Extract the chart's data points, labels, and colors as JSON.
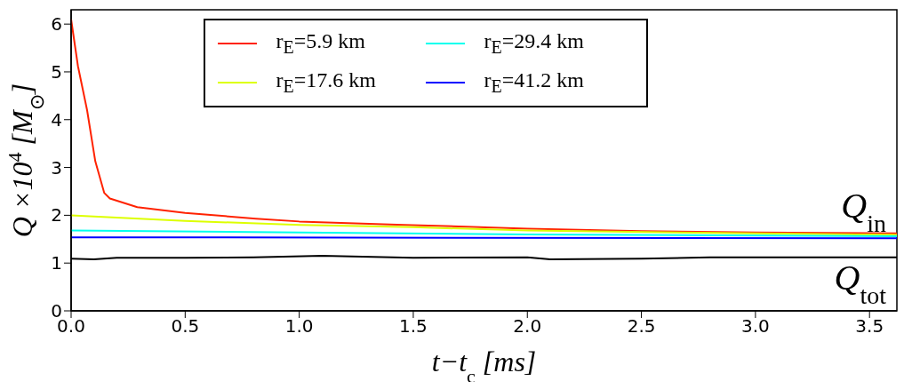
{
  "chart_data": {
    "type": "line",
    "xlabel": "t−t$_{c}$ [ms]",
    "ylabel": "Q ×10$^{4}$ [M$_{⊙}$]",
    "xlim": [
      0,
      3.62
    ],
    "ylim": [
      0,
      6.3
    ],
    "xticks": [
      {
        "value": 0,
        "label": "0.0"
      },
      {
        "value": 0.5,
        "label": "0.5"
      },
      {
        "value": 1,
        "label": "1.0"
      },
      {
        "value": 1.5,
        "label": "1.5"
      },
      {
        "value": 2,
        "label": "2.0"
      },
      {
        "value": 2.5,
        "label": "2.5"
      },
      {
        "value": 3,
        "label": "3.0"
      },
      {
        "value": 3.5,
        "label": "3.5"
      }
    ],
    "yticks": [
      0,
      1,
      2,
      3,
      4,
      5,
      6
    ],
    "grid": false,
    "legend": "top",
    "marker": "none",
    "line_style": "solid",
    "series": [
      {
        "name": "r$_{E}$=5.9 km",
        "color": "#ff2200",
        "x": [
          0,
          0.03,
          0.07,
          0.106,
          0.145,
          0.17,
          0.29,
          0.5,
          0.81,
          1.0,
          1.46,
          2.0,
          2.5,
          3.0,
          3.62
        ],
        "values": [
          6.1,
          5.12,
          4.2,
          3.13,
          2.47,
          2.35,
          2.17,
          2.05,
          1.93,
          1.87,
          1.8,
          1.72,
          1.67,
          1.64,
          1.62
        ]
      },
      {
        "name": "r$_{E}$=17.6 km",
        "color": "#ddff00",
        "x": [
          0,
          0.5,
          1,
          1.5,
          2,
          3,
          3.62
        ],
        "values": [
          2.0,
          1.88,
          1.8,
          1.75,
          1.68,
          1.62,
          1.59
        ]
      },
      {
        "name": "r$_{E}$=29.4 km",
        "color": "#00ffee",
        "x": [
          0,
          1,
          2,
          3.62
        ],
        "values": [
          1.68,
          1.64,
          1.6,
          1.56
        ]
      },
      {
        "name": "r$_{E}$=41.2 km",
        "color": "#0000ff",
        "x": [
          0,
          3.62
        ],
        "values": [
          1.54,
          1.52
        ]
      },
      {
        "color": "#000000",
        "x": [
          0,
          0.1,
          0.2,
          0.5,
          0.8,
          1.1,
          1.5,
          2.0,
          2.1,
          2.5,
          2.8,
          3.62
        ],
        "values": [
          1.09,
          1.08,
          1.11,
          1.11,
          1.12,
          1.15,
          1.11,
          1.12,
          1.08,
          1.09,
          1.12,
          1.12
        ]
      }
    ],
    "annotations": [
      "Q$_{in}$",
      "Q$_{tot}$"
    ]
  }
}
